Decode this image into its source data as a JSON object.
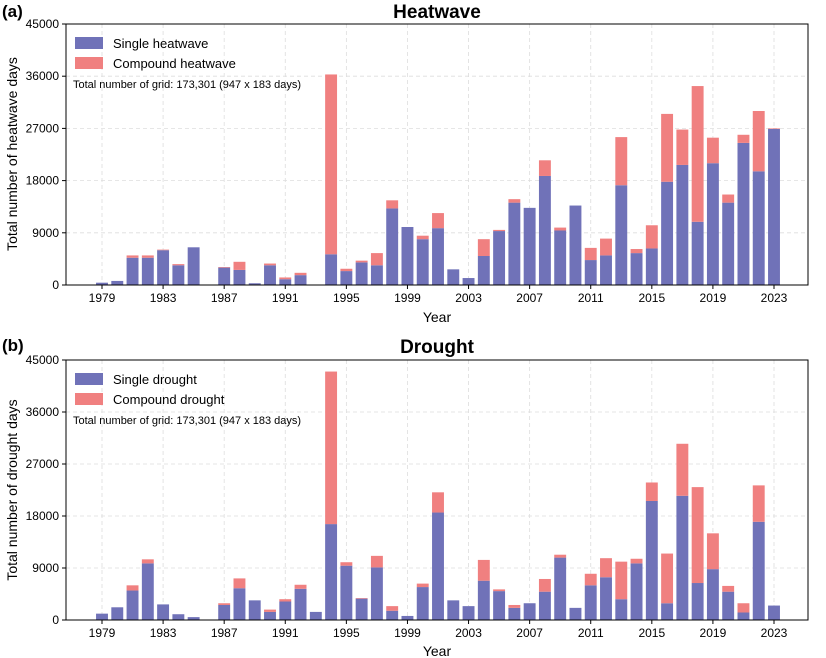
{
  "chart_data": [
    {
      "type": "bar",
      "stacked": true,
      "panel_label": "(a)",
      "title": "Heatwave",
      "xlabel": "Year",
      "ylabel": "Total number of heatwave days",
      "ylim": [
        0,
        45000
      ],
      "yticks": [
        "0",
        "9000",
        "18000",
        "27000",
        "36000",
        "45000"
      ],
      "xticks": [
        "1979",
        "1983",
        "1987",
        "1991",
        "1995",
        "1999",
        "2003",
        "2007",
        "2011",
        "2015",
        "2019",
        "2023"
      ],
      "grid": true,
      "legend_position": "top-left",
      "note": "Total number of grid: 173,301 (947 x 183 days)",
      "colors": {
        "single": "#7072b8",
        "compound": "#f08080"
      },
      "categories": [
        1979,
        1980,
        1981,
        1982,
        1983,
        1984,
        1985,
        1986,
        1987,
        1988,
        1989,
        1990,
        1991,
        1992,
        1993,
        1994,
        1995,
        1996,
        1997,
        1998,
        1999,
        2000,
        2001,
        2002,
        2003,
        2004,
        2005,
        2006,
        2007,
        2008,
        2009,
        2010,
        2011,
        2012,
        2013,
        2014,
        2015,
        2016,
        2017,
        2018,
        2019,
        2020,
        2021,
        2022,
        2023
      ],
      "series": [
        {
          "name": "Single heatwave",
          "values": [
            400,
            700,
            4700,
            4700,
            6000,
            3400,
            6500,
            0,
            3000,
            2600,
            300,
            3400,
            1000,
            1700,
            0,
            5300,
            2400,
            3900,
            3400,
            13200,
            10000,
            7900,
            9800,
            2700,
            1200,
            5000,
            9300,
            14200,
            13300,
            18800,
            9400,
            13700,
            4300,
            5100,
            17200,
            5500,
            6300,
            17800,
            20700,
            10900,
            21000,
            14200,
            24500,
            19600,
            26900
          ]
        },
        {
          "name": "Compound heatwave",
          "values": [
            0,
            0,
            400,
            400,
            100,
            200,
            0,
            0,
            100,
            1400,
            0,
            300,
            300,
            400,
            0,
            31000,
            400,
            300,
            2100,
            1400,
            0,
            600,
            2600,
            0,
            0,
            2900,
            200,
            600,
            0,
            2700,
            500,
            0,
            2100,
            2900,
            8300,
            700,
            4000,
            11700,
            6100,
            23400,
            4400,
            1400,
            1400,
            10400,
            100
          ]
        }
      ]
    },
    {
      "type": "bar",
      "stacked": true,
      "panel_label": "(b)",
      "title": "Drought",
      "xlabel": "Year",
      "ylabel": "Total number of drought days",
      "ylim": [
        0,
        45000
      ],
      "yticks": [
        "0",
        "9000",
        "18000",
        "27000",
        "36000",
        "45000"
      ],
      "xticks": [
        "1979",
        "1983",
        "1987",
        "1991",
        "1995",
        "1999",
        "2003",
        "2007",
        "2011",
        "2015",
        "2019",
        "2023"
      ],
      "grid": true,
      "legend_position": "top-left",
      "note": "Total number of grid: 173,301 (947 x 183 days)",
      "colors": {
        "single": "#7072b8",
        "compound": "#f08080"
      },
      "categories": [
        1979,
        1980,
        1981,
        1982,
        1983,
        1984,
        1985,
        1986,
        1987,
        1988,
        1989,
        1990,
        1991,
        1992,
        1993,
        1994,
        1995,
        1996,
        1997,
        1998,
        1999,
        2000,
        2001,
        2002,
        2003,
        2004,
        2005,
        2006,
        2007,
        2008,
        2009,
        2010,
        2011,
        2012,
        2013,
        2014,
        2015,
        2016,
        2017,
        2018,
        2019,
        2020,
        2021,
        2022,
        2023
      ],
      "series": [
        {
          "name": "Single drought",
          "values": [
            1100,
            2200,
            5100,
            9800,
            2700,
            1000,
            500,
            0,
            2600,
            5500,
            3400,
            1400,
            3200,
            5400,
            1400,
            16600,
            9400,
            3700,
            9100,
            1600,
            700,
            5700,
            18600,
            3400,
            2400,
            6800,
            5000,
            2100,
            2900,
            4900,
            10800,
            2100,
            6000,
            7400,
            3600,
            9800,
            20600,
            2900,
            21500,
            6400,
            8800,
            4900,
            1300,
            17000,
            2500
          ]
        },
        {
          "name": "Compound drought",
          "values": [
            0,
            0,
            900,
            700,
            0,
            0,
            0,
            0,
            300,
            1700,
            0,
            400,
            400,
            700,
            0,
            26400,
            600,
            100,
            2000,
            800,
            0,
            600,
            3500,
            0,
            0,
            3600,
            300,
            500,
            0,
            2200,
            500,
            0,
            2000,
            3300,
            6500,
            800,
            3200,
            8600,
            9000,
            16600,
            6200,
            1000,
            1600,
            6300,
            0
          ]
        }
      ]
    }
  ]
}
